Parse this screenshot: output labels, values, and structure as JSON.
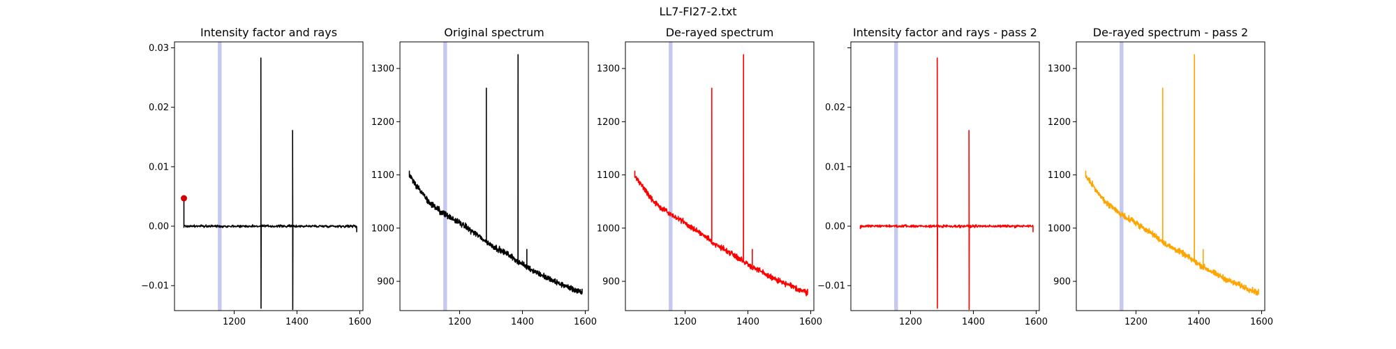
{
  "figure_title": "LL7-FI27-2.txt",
  "chart_data": [
    {
      "type": "line",
      "title": "Intensity factor and rays",
      "color": "#000000",
      "xlim": [
        1010,
        1610
      ],
      "ylim": [
        -0.0142,
        0.031
      ],
      "x_ticks": [
        1200,
        1400,
        1600
      ],
      "x_tick_labels": [
        "1200",
        "1400",
        "1600"
      ],
      "y_ticks": [
        -0.01,
        0.0,
        0.01,
        0.02,
        0.03
      ],
      "y_tick_labels": [
        "−0.01",
        "0.00",
        "0.01",
        "0.02",
        "0.03"
      ],
      "shaded_band": {
        "from": 1148,
        "to": 1160,
        "color": "#bfc3ef"
      },
      "marker": {
        "x": 1040,
        "y": 0.0047,
        "color": "#d00000"
      },
      "baseline": {
        "from": 1040,
        "to": 1590,
        "y": 0.0,
        "noise": 0.0003
      },
      "spikes": [
        {
          "x": 1285,
          "top": 0.0283,
          "bottom": -0.0138
        },
        {
          "x": 1386,
          "top": 0.0161,
          "bottom": -0.014
        }
      ],
      "series": [
        {
          "values": [
            [
              1040,
              0.0047
            ],
            [
              1040,
              0.0
            ],
            [
              1100,
              0.0
            ],
            [
              1200,
              0.0
            ],
            [
              1285,
              0.0
            ],
            [
              1386,
              0.0
            ],
            [
              1500,
              0.0
            ],
            [
              1590,
              0.0
            ],
            [
              1590,
              -0.001
            ]
          ]
        }
      ]
    },
    {
      "type": "line",
      "title": "Original spectrum",
      "color": "#000000",
      "xlim": [
        1010,
        1610
      ],
      "ylim": [
        845,
        1350
      ],
      "x_ticks": [
        1200,
        1400,
        1600
      ],
      "x_tick_labels": [
        "1200",
        "1400",
        "1600"
      ],
      "y_ticks": [
        900,
        1000,
        1100,
        1200,
        1300
      ],
      "y_tick_labels": [
        "900",
        "1000",
        "1100",
        "1200",
        "1300"
      ],
      "shaded_band": {
        "from": 1148,
        "to": 1160,
        "color": "#bfc3ef"
      },
      "curve": {
        "x_start": 1040,
        "x_end": 1590,
        "y_start": 1098,
        "y_end": 878,
        "noise": 8
      },
      "curve_points": [
        [
          1040,
          1098
        ],
        [
          1100,
          1050
        ],
        [
          1150,
          1027
        ],
        [
          1200,
          1010
        ],
        [
          1250,
          990
        ],
        [
          1300,
          968
        ],
        [
          1350,
          952
        ],
        [
          1400,
          932
        ],
        [
          1450,
          915
        ],
        [
          1500,
          900
        ],
        [
          1550,
          888
        ],
        [
          1590,
          878
        ]
      ],
      "spikes": [
        {
          "x": 1285,
          "top": 1263
        },
        {
          "x": 1386,
          "top": 1326
        },
        {
          "x": 1414,
          "top": 960
        }
      ]
    },
    {
      "type": "line",
      "title": "De-rayed spectrum",
      "color": "#ff0000",
      "xlim": [
        1010,
        1610
      ],
      "ylim": [
        845,
        1350
      ],
      "x_ticks": [
        1200,
        1400,
        1600
      ],
      "x_tick_labels": [
        "1200",
        "1400",
        "1600"
      ],
      "y_ticks": [
        900,
        1000,
        1100,
        1200,
        1300
      ],
      "y_tick_labels": [
        "900",
        "1000",
        "1100",
        "1200",
        "1300"
      ],
      "shaded_band": {
        "from": 1148,
        "to": 1160,
        "color": "#bfc3ef"
      },
      "curve": {
        "x_start": 1040,
        "x_end": 1590,
        "y_start": 1098,
        "y_end": 878,
        "noise": 8
      },
      "curve_points": [
        [
          1040,
          1098
        ],
        [
          1100,
          1050
        ],
        [
          1150,
          1027
        ],
        [
          1200,
          1010
        ],
        [
          1250,
          990
        ],
        [
          1300,
          968
        ],
        [
          1350,
          952
        ],
        [
          1400,
          932
        ],
        [
          1450,
          915
        ],
        [
          1500,
          900
        ],
        [
          1550,
          888
        ],
        [
          1590,
          878
        ]
      ],
      "spikes": [
        {
          "x": 1285,
          "top": 1263
        },
        {
          "x": 1386,
          "top": 1326
        },
        {
          "x": 1414,
          "top": 960
        }
      ]
    },
    {
      "type": "line",
      "title": "Intensity factor and rays - pass 2",
      "color": "#ff0000",
      "xlim": [
        1010,
        1610
      ],
      "ylim": [
        -0.0142,
        0.031
      ],
      "x_ticks": [
        1200,
        1400,
        1600
      ],
      "x_tick_labels": [
        "1200",
        "1400",
        "1600"
      ],
      "y_ticks": [
        -0.01,
        0.0,
        0.01,
        0.02,
        0.03
      ],
      "y_tick_labels": [
        "−0.01",
        "0.00",
        "0.01",
        "0.02",
        ""
      ],
      "shaded_band": {
        "from": 1148,
        "to": 1160,
        "color": "#bfc3ef"
      },
      "baseline": {
        "from": 1040,
        "to": 1590,
        "y": 0.0,
        "noise": 0.0003
      },
      "spikes": [
        {
          "x": 1285,
          "top": 0.0283,
          "bottom": -0.0138
        },
        {
          "x": 1386,
          "top": 0.0161,
          "bottom": -0.014
        }
      ],
      "series": [
        {
          "values": [
            [
              1040,
              -0.0005
            ],
            [
              1040,
              0.0
            ],
            [
              1200,
              0.0
            ],
            [
              1285,
              0.0
            ],
            [
              1386,
              0.0
            ],
            [
              1590,
              0.0
            ],
            [
              1590,
              -0.001
            ]
          ]
        }
      ]
    },
    {
      "type": "line",
      "title": "De-rayed spectrum - pass 2",
      "color": "#ffa500",
      "xlim": [
        1010,
        1610
      ],
      "ylim": [
        845,
        1350
      ],
      "x_ticks": [
        1200,
        1400,
        1600
      ],
      "x_tick_labels": [
        "1200",
        "1400",
        "1600"
      ],
      "y_ticks": [
        900,
        1000,
        1100,
        1200,
        1300
      ],
      "y_tick_labels": [
        "900",
        "1000",
        "1100",
        "1200",
        "1300"
      ],
      "shaded_band": {
        "from": 1148,
        "to": 1160,
        "color": "#bfc3ef"
      },
      "curve": {
        "x_start": 1040,
        "x_end": 1590,
        "y_start": 1098,
        "y_end": 878,
        "noise": 8
      },
      "curve_points": [
        [
          1040,
          1098
        ],
        [
          1100,
          1050
        ],
        [
          1150,
          1027
        ],
        [
          1200,
          1010
        ],
        [
          1250,
          990
        ],
        [
          1300,
          968
        ],
        [
          1350,
          952
        ],
        [
          1400,
          932
        ],
        [
          1450,
          915
        ],
        [
          1500,
          900
        ],
        [
          1550,
          888
        ],
        [
          1590,
          878
        ]
      ],
      "spikes": [
        {
          "x": 1285,
          "top": 1263
        },
        {
          "x": 1386,
          "top": 1326
        },
        {
          "x": 1414,
          "top": 960
        }
      ]
    }
  ]
}
